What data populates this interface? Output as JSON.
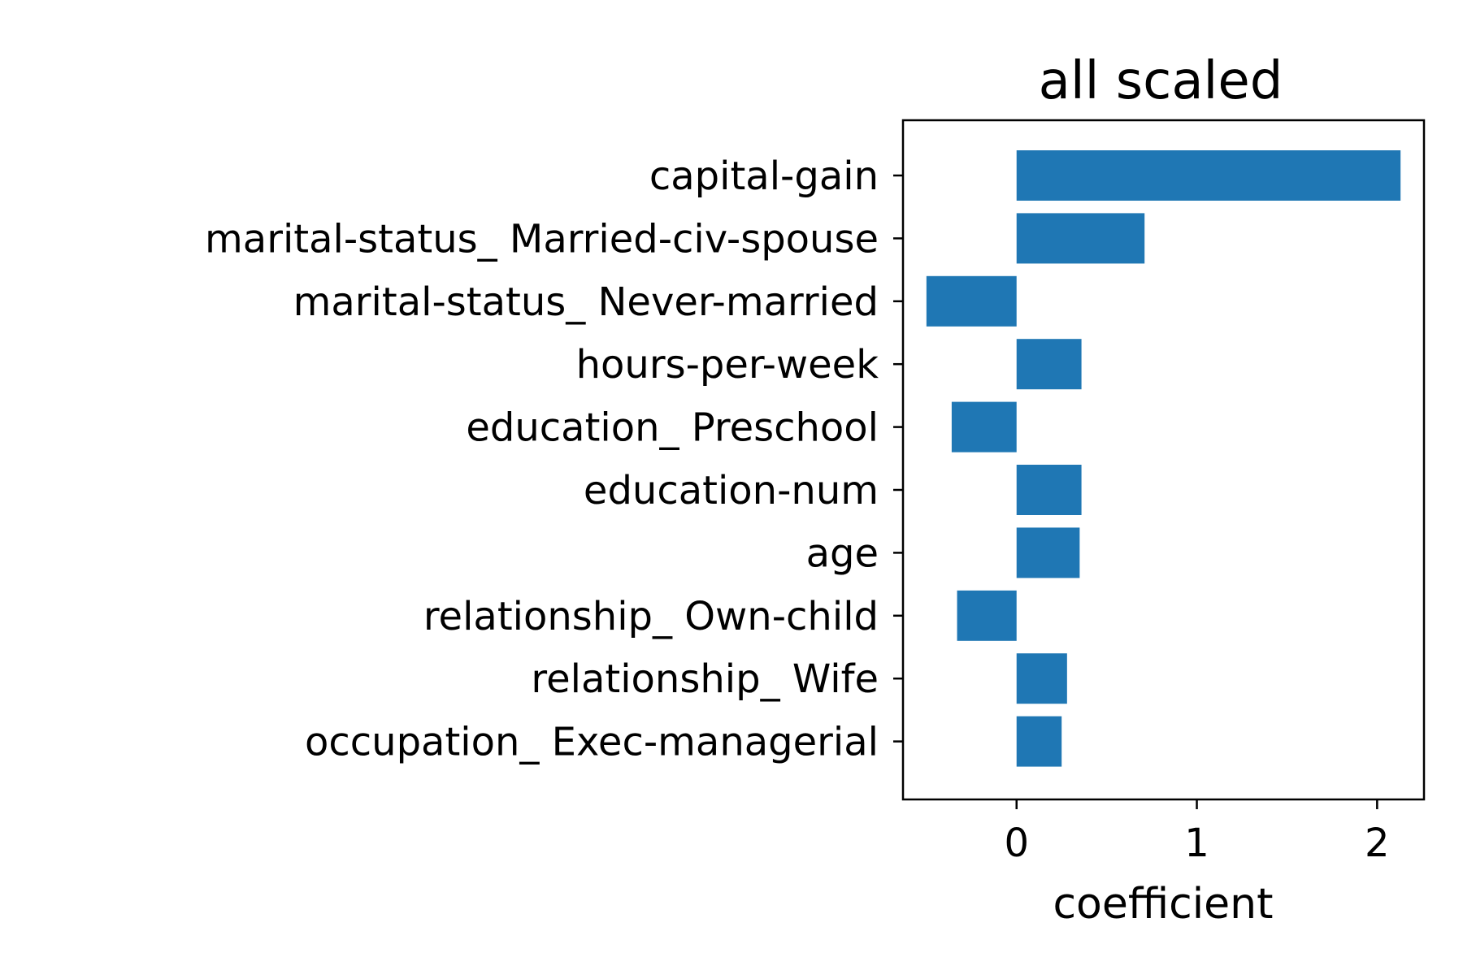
{
  "chart_data": {
    "type": "bar",
    "orientation": "horizontal",
    "title": "all scaled",
    "xlabel": "coefficient",
    "ylabel": "",
    "xlim": [
      -0.63,
      2.26
    ],
    "xticks": [
      "0",
      "1",
      "2"
    ],
    "grid": false,
    "bar_color": "#1f77b4",
    "categories": [
      "capital-gain",
      "marital-status_ Married-civ-spouse",
      "marital-status_ Never-married",
      "hours-per-week",
      "education_ Preschool",
      "education-num",
      "age",
      "relationship_ Own-child",
      "relationship_ Wife",
      "occupation_ Exec-managerial"
    ],
    "values": [
      2.13,
      0.71,
      -0.5,
      0.36,
      -0.36,
      0.36,
      0.35,
      -0.33,
      0.28,
      0.25
    ]
  }
}
